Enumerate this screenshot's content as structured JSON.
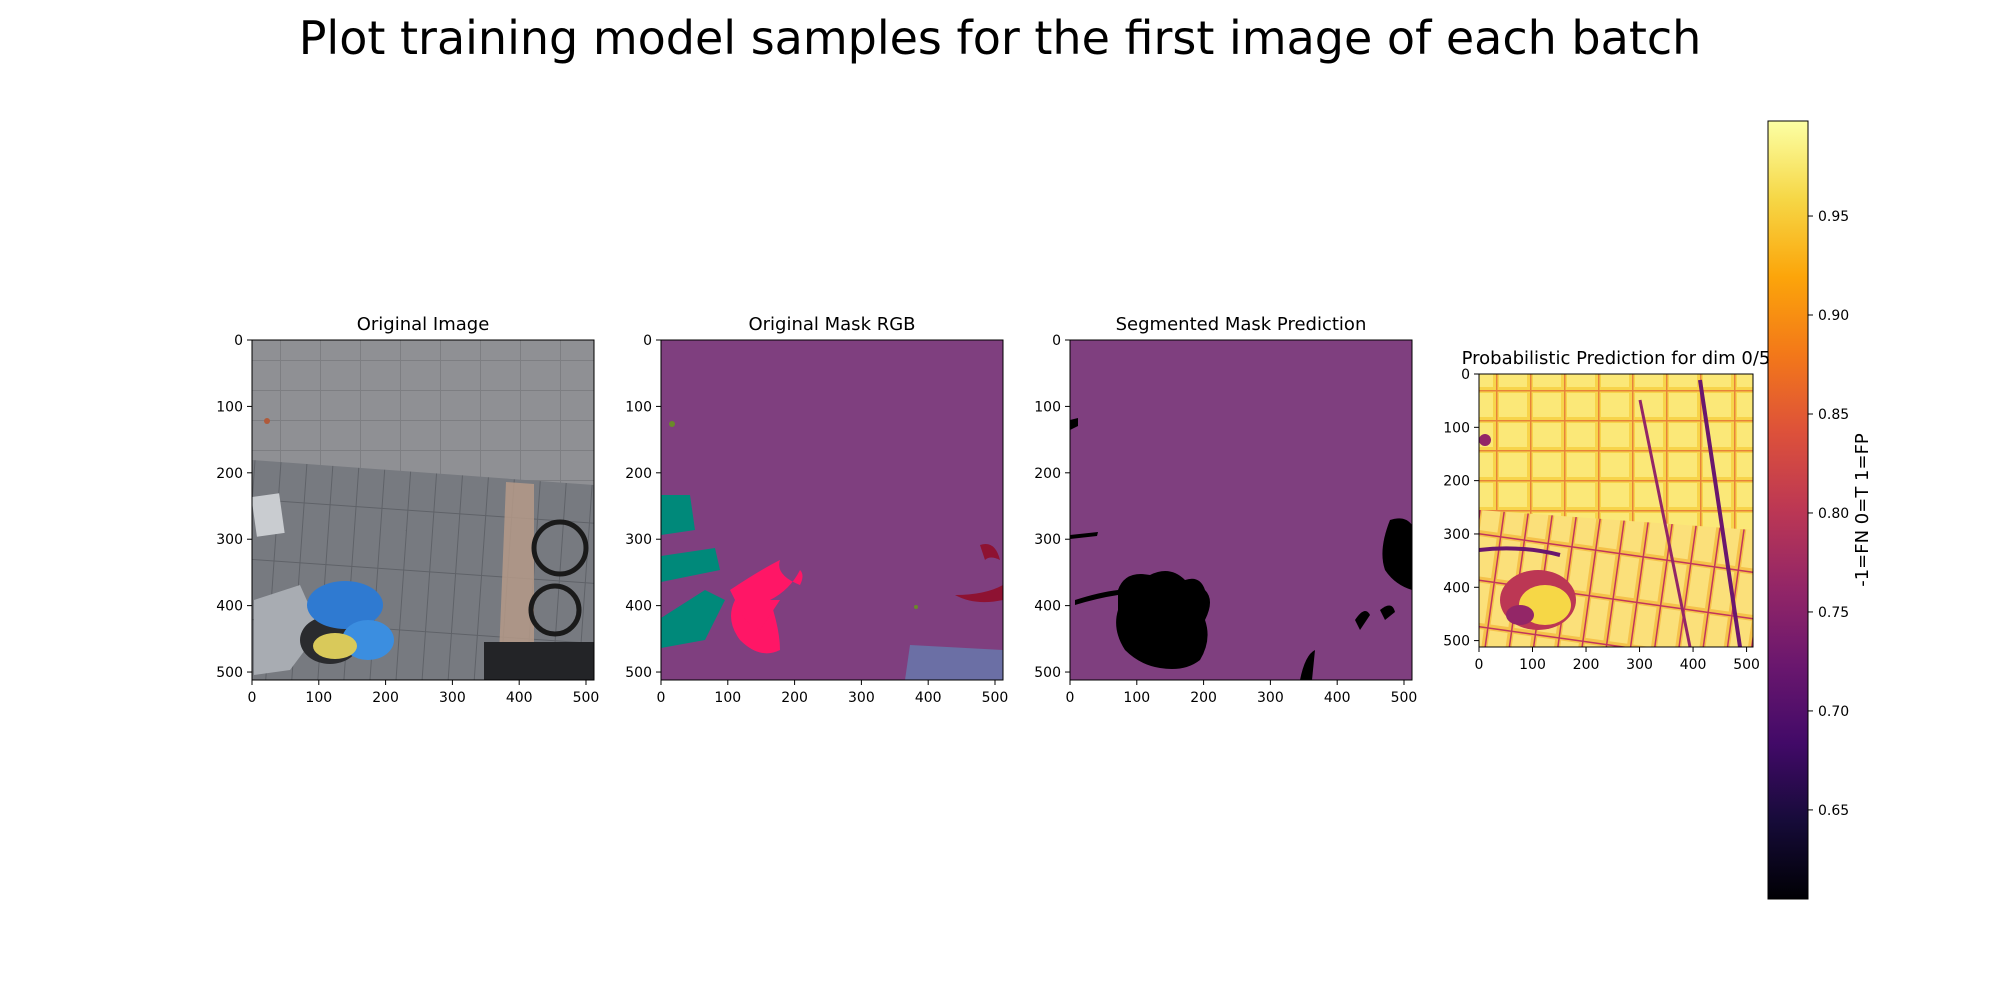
{
  "title": "Plot training model samples for the first image of each batch",
  "colors": {
    "mask_background": "#7f3f7f",
    "mask_green": "#00897a",
    "mask_pink": "#ff1666",
    "mask_red": "#8e1232",
    "mask_lavender": "#6b6fa5",
    "mask_olive": "#6a8a2a",
    "prediction_black": "#000000"
  },
  "chart_data": [
    {
      "type": "heatmap",
      "title": "Original Image",
      "content": "photo",
      "xlim": [
        0,
        512
      ],
      "ylim": [
        512,
        0
      ],
      "xticks": [
        "0",
        "100",
        "200",
        "300",
        "400",
        "500"
      ],
      "yticks": [
        "0",
        "100",
        "200",
        "300",
        "400",
        "500"
      ]
    },
    {
      "type": "heatmap",
      "title": "Original Mask RGB",
      "content": "segmentation mask",
      "xlim": [
        0,
        512
      ],
      "ylim": [
        512,
        0
      ],
      "xticks": [
        "0",
        "100",
        "200",
        "300",
        "400",
        "500"
      ],
      "yticks": [
        "0",
        "100",
        "200",
        "300",
        "400",
        "500"
      ]
    },
    {
      "type": "heatmap",
      "title": "Segmented Mask Prediction",
      "content": "segmentation mask",
      "xlim": [
        0,
        512
      ],
      "ylim": [
        512,
        0
      ],
      "xticks": [
        "0",
        "100",
        "200",
        "300",
        "400",
        "500"
      ],
      "yticks": [
        "0",
        "100",
        "200",
        "300",
        "400",
        "500"
      ]
    },
    {
      "type": "heatmap",
      "title": "Probabilistic Prediction for dim 0/5",
      "content": "probability map",
      "colormap": "inferno",
      "xlim": [
        0,
        512
      ],
      "ylim": [
        512,
        0
      ],
      "xticks": [
        "0",
        "100",
        "200",
        "300",
        "400",
        "500"
      ],
      "yticks": [
        "0",
        "100",
        "200",
        "300",
        "400",
        "500"
      ],
      "colorbar": {
        "label": "-1=FN 0=T 1=FP",
        "range": [
          0.605,
          0.998
        ],
        "ticks": [
          0.65,
          0.7,
          0.75,
          0.8,
          0.85,
          0.9,
          0.95
        ],
        "tick_labels": [
          "0.65",
          "0.70",
          "0.75",
          "0.80",
          "0.85",
          "0.90",
          "0.95"
        ]
      }
    }
  ]
}
